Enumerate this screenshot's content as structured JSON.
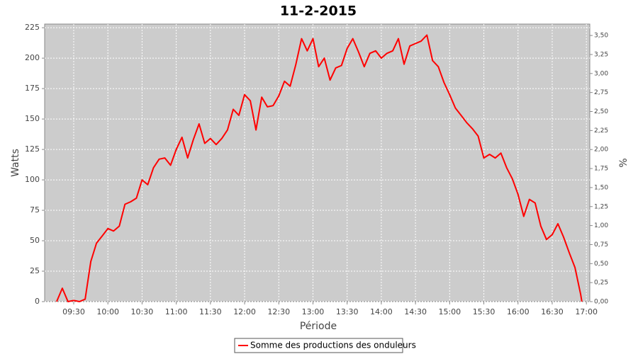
{
  "chart_data": {
    "type": "line",
    "title": "11-2-2015",
    "x_label": "Période",
    "y_label": "Watts",
    "y2_label": "%",
    "grid": true,
    "legend": "bottom",
    "xlim": [
      544.5,
      1023
    ],
    "xticks": [
      {
        "value": 570,
        "label": "09:30"
      },
      {
        "value": 600,
        "label": "10:00"
      },
      {
        "value": 630,
        "label": "10:30"
      },
      {
        "value": 660,
        "label": "11:00"
      },
      {
        "value": 690,
        "label": "11:30"
      },
      {
        "value": 720,
        "label": "12:00"
      },
      {
        "value": 750,
        "label": "12:30"
      },
      {
        "value": 780,
        "label": "13:00"
      },
      {
        "value": 810,
        "label": "13:30"
      },
      {
        "value": 840,
        "label": "14:00"
      },
      {
        "value": 870,
        "label": "14:30"
      },
      {
        "value": 900,
        "label": "15:00"
      },
      {
        "value": 930,
        "label": "15:30"
      },
      {
        "value": 960,
        "label": "16:00"
      },
      {
        "value": 990,
        "label": "16:30"
      },
      {
        "value": 1020,
        "label": "17:00"
      }
    ],
    "ylim": [
      0,
      228
    ],
    "yticks": [
      0,
      25,
      50,
      75,
      100,
      125,
      150,
      175,
      200,
      225
    ],
    "y2lim": [
      0,
      3.65
    ],
    "y2ticks": [
      {
        "value": 0,
        "label": "0,00"
      },
      {
        "value": 0.25,
        "label": "0,25"
      },
      {
        "value": 0.5,
        "label": "0,50"
      },
      {
        "value": 0.75,
        "label": "0,75"
      },
      {
        "value": 1,
        "label": "1,00"
      },
      {
        "value": 1.25,
        "label": "1,25"
      },
      {
        "value": 1.5,
        "label": "1,50"
      },
      {
        "value": 1.75,
        "label": "1,75"
      },
      {
        "value": 2,
        "label": "2,00"
      },
      {
        "value": 2.25,
        "label": "2,25"
      },
      {
        "value": 2.5,
        "label": "2,50"
      },
      {
        "value": 2.75,
        "label": "2,75"
      },
      {
        "value": 3,
        "label": "3,00"
      },
      {
        "value": 3.25,
        "label": "3,25"
      },
      {
        "value": 3.5,
        "label": "3,50"
      }
    ],
    "x": [
      555,
      560,
      565,
      570,
      575,
      580,
      585,
      590,
      595,
      600,
      605,
      610,
      615,
      620,
      625,
      630,
      635,
      640,
      645,
      650,
      655,
      660,
      665,
      670,
      675,
      680,
      685,
      690,
      695,
      700,
      705,
      710,
      715,
      720,
      725,
      730,
      735,
      740,
      745,
      750,
      755,
      760,
      765,
      770,
      775,
      780,
      785,
      790,
      795,
      800,
      805,
      810,
      815,
      820,
      825,
      830,
      835,
      840,
      845,
      850,
      855,
      860,
      865,
      870,
      875,
      880,
      885,
      890,
      895,
      900,
      905,
      910,
      915,
      920,
      925,
      930,
      935,
      940,
      945,
      950,
      955,
      960,
      965,
      970,
      975,
      980,
      985,
      990,
      995,
      1000,
      1005,
      1010,
      1015,
      1016
    ],
    "series": [
      {
        "name": "Somme des productions des onduleurs",
        "color": "#ff0000",
        "values": [
          0,
          11,
          0,
          1,
          0,
          2,
          33,
          48,
          54,
          60,
          58,
          62,
          80,
          82,
          85,
          100,
          96,
          110,
          117,
          118,
          112,
          125,
          135,
          118,
          133,
          146,
          130,
          134,
          129,
          134,
          141,
          158,
          153,
          170,
          165,
          141,
          168,
          160,
          161,
          169,
          181,
          177,
          195,
          216,
          206,
          216,
          193,
          200,
          182,
          192,
          194,
          208,
          216,
          205,
          193,
          204,
          206,
          200,
          204,
          206,
          216,
          195,
          210,
          212,
          214,
          219,
          198,
          193,
          180,
          170,
          159,
          153,
          147,
          142,
          136,
          118,
          121,
          118,
          122,
          110,
          101,
          88,
          70,
          84,
          81,
          62,
          51,
          55,
          64,
          53,
          40,
          28,
          6,
          0
        ]
      }
    ]
  }
}
